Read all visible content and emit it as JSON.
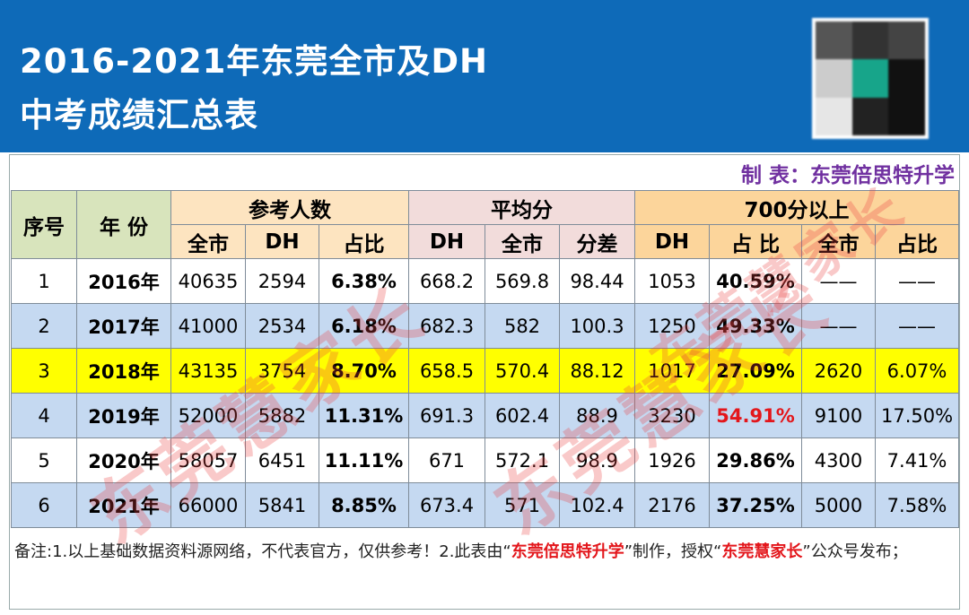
{
  "header": {
    "title_lines": [
      "2016-2021年东莞全市及DH",
      "中考成绩汇总表"
    ]
  },
  "maker": "制 表：东莞倍思特升学",
  "table": {
    "groups": [
      "序号",
      "年 份",
      "参考人数",
      "平均分",
      "700分以上"
    ],
    "subheaders": [
      "全市",
      "DH",
      "占比",
      "DH",
      "全市",
      "分差",
      "DH",
      "占 比",
      "全市",
      "占比"
    ],
    "rows": [
      [
        "1",
        "2016年",
        "40635",
        "2594",
        "6.38%",
        "668.2",
        "569.8",
        "98.44",
        "1053",
        "40.59%",
        "——",
        "——"
      ],
      [
        "2",
        "2017年",
        "41000",
        "2534",
        "6.18%",
        "682.3",
        "582",
        "100.3",
        "1250",
        "49.33%",
        "——",
        "——"
      ],
      [
        "3",
        "2018年",
        "43135",
        "3754",
        "8.70%",
        "658.5",
        "570.4",
        "88.12",
        "1017",
        "27.09%",
        "2620",
        "6.07%"
      ],
      [
        "4",
        "2019年",
        "52000",
        "5882",
        "11.31%",
        "691.3",
        "602.4",
        "88.9",
        "3230",
        "54.91%",
        "9100",
        "17.50%"
      ],
      [
        "5",
        "2020年",
        "58057",
        "6451",
        "11.11%",
        "671",
        "572.1",
        "98.9",
        "1926",
        "29.86%",
        "4300",
        "7.41%"
      ],
      [
        "6",
        "2021年",
        "66000",
        "5841",
        "8.85%",
        "673.4",
        "571",
        "102.4",
        "2176",
        "37.25%",
        "5000",
        "7.58%"
      ]
    ]
  },
  "note": [
    "备注:1.以上基础数据资料源网络，不代表官方，仅供参考！2.此表由“",
    "东莞倍思特升学",
    "”制作，授权“",
    "东莞慧家长",
    "”公众号发布；"
  ],
  "watermark": "东莞慧家长"
}
